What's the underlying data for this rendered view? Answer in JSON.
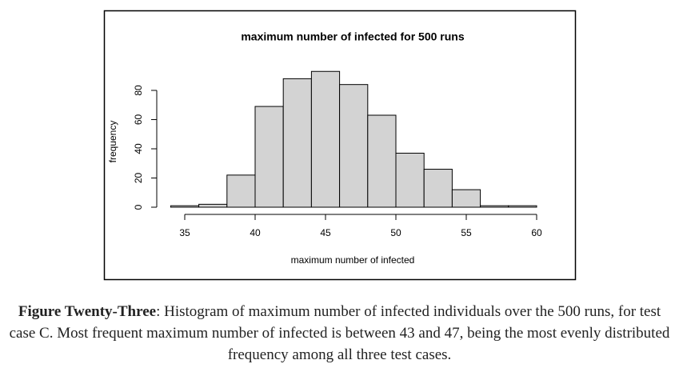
{
  "chart_data": {
    "type": "histogram",
    "title": "maximum number of infected for 500 runs",
    "x_label": "maximum number of infected",
    "y_label": "frequency",
    "bins": [
      34,
      36,
      38,
      40,
      42,
      44,
      46,
      48,
      50,
      52,
      54,
      56,
      58,
      60
    ],
    "values": [
      1,
      2,
      22,
      69,
      88,
      93,
      84,
      63,
      37,
      26,
      12,
      1,
      1
    ],
    "color": "#d3d3d3",
    "xlim": [
      34,
      60
    ],
    "xticks": [
      35,
      40,
      45,
      50,
      55,
      60
    ],
    "ylim": [
      0,
      95
    ],
    "yticks": [
      0,
      20,
      40,
      60,
      80
    ]
  },
  "caption": {
    "label": "Figure Twenty-Three",
    "text": ": Histogram of maximum number of infected individuals over the 500 runs, for test case C. Most frequent maximum number of infected is between 43 and 47, being the most evenly distributed frequency among all three test cases."
  }
}
